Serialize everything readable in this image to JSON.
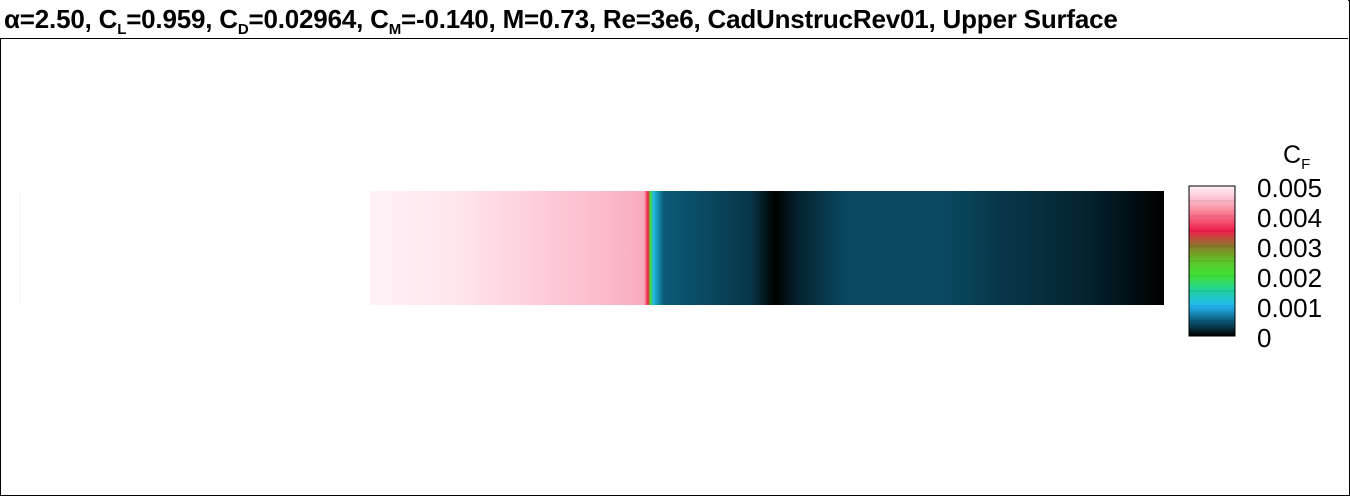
{
  "title": {
    "alpha_symbol": "α",
    "alpha_value": "=2.50, ",
    "cl_c": "C",
    "cl_sub": "L",
    "cl_value": "=0.959, ",
    "cd_c": "C",
    "cd_sub": "D",
    "cd_value": "=0.02964, ",
    "cm_c": "C",
    "cm_sub": "M",
    "cm_value": "=-0.140, ",
    "rest": "M=0.73, Re=3e6, CadUnstrucRev01, Upper Surface"
  },
  "legend": {
    "variable": "C",
    "variable_sub": "F",
    "ticks": [
      "0.005",
      "0.004",
      "0.003",
      "0.002",
      "0.001",
      "0"
    ]
  },
  "chart_data": {
    "type": "heatmap",
    "title": "α=2.50, CL=0.959, CD=0.02964, CM=-0.140, M=0.73, Re=3e6, CadUnstrucRev01, Upper Surface",
    "colorbar_label": "CF",
    "colorbar_range": [
      0,
      0.005
    ],
    "colorbar_ticks": [
      0.005,
      0.004,
      0.003,
      0.002,
      0.001,
      0
    ],
    "colormap": [
      {
        "value": 0.0,
        "color": "#000000"
      },
      {
        "value": 0.0005,
        "color": "#0b5a78"
      },
      {
        "value": 0.001,
        "color": "#22b5f0"
      },
      {
        "value": 0.0015,
        "color": "#1ed2a0"
      },
      {
        "value": 0.002,
        "color": "#3fe23a"
      },
      {
        "value": 0.0025,
        "color": "#5ec326"
      },
      {
        "value": 0.003,
        "color": "#8a7a2c"
      },
      {
        "value": 0.0035,
        "color": "#f01e4a"
      },
      {
        "value": 0.004,
        "color": "#f76e88"
      },
      {
        "value": 0.0045,
        "color": "#fbb9c9"
      },
      {
        "value": 0.005,
        "color": "#fff2f6"
      }
    ],
    "x_label": "",
    "y_label": "",
    "surface_profile": [
      {
        "x": 0.0,
        "cf": 0.0052
      },
      {
        "x": 0.1,
        "cf": 0.0049
      },
      {
        "x": 0.2,
        "cf": 0.0047
      },
      {
        "x": 0.3,
        "cf": 0.0045
      },
      {
        "x": 0.345,
        "cf": 0.0044
      },
      {
        "x": 0.35,
        "cf": 0.0035
      },
      {
        "x": 0.353,
        "cf": 0.0022
      },
      {
        "x": 0.357,
        "cf": 0.0011
      },
      {
        "x": 0.37,
        "cf": 0.0005
      },
      {
        "x": 0.48,
        "cf": 0.0003
      },
      {
        "x": 0.51,
        "cf": 0.0
      },
      {
        "x": 0.54,
        "cf": 0.0002
      },
      {
        "x": 0.6,
        "cf": 0.0004
      },
      {
        "x": 0.72,
        "cf": 0.0004
      },
      {
        "x": 0.8,
        "cf": 0.0003
      },
      {
        "x": 0.9,
        "cf": 0.0002
      },
      {
        "x": 1.0,
        "cf": 0.0
      }
    ]
  }
}
